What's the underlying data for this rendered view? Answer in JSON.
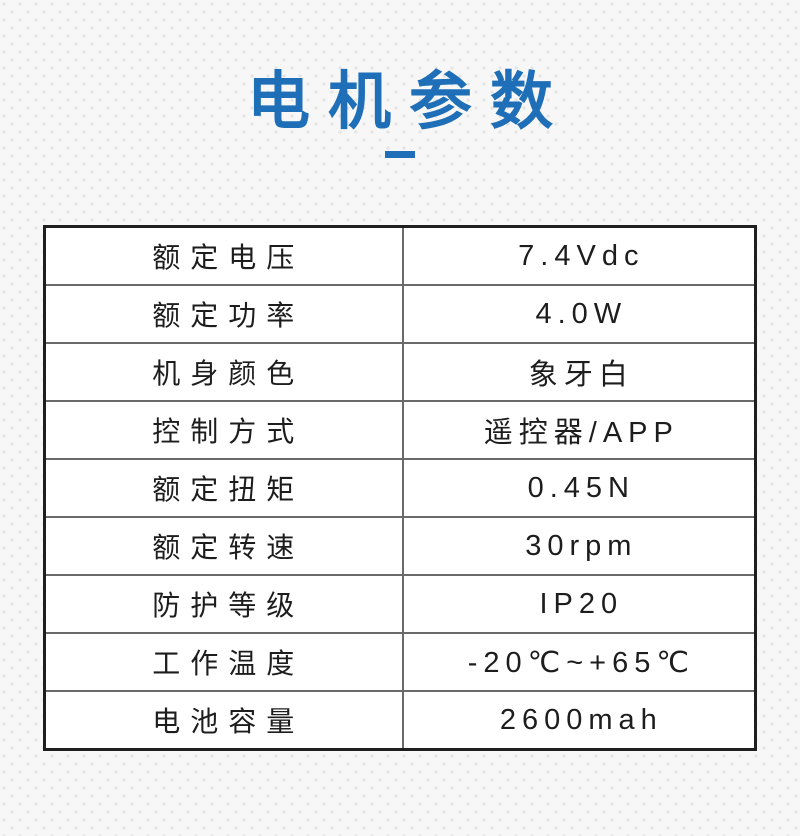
{
  "page": {
    "background_color": "#f7f7f7",
    "dot_pattern_color": "#e4e4e4"
  },
  "header": {
    "title": "电机参数",
    "accent_color": "#1e6fb8"
  },
  "table": {
    "border_outer_color": "#1f1f1f",
    "border_inner_color": "#6a6a6a",
    "text_color": "#1d1d1d",
    "rows": [
      {
        "label": "额定电压",
        "value": "7.4Vdc"
      },
      {
        "label": "额定功率",
        "value": "4.0W"
      },
      {
        "label": "机身颜色",
        "value": "象牙白"
      },
      {
        "label": "控制方式",
        "value": "遥控器/APP"
      },
      {
        "label": "额定扭矩",
        "value": "0.45N"
      },
      {
        "label": "额定转速",
        "value": "30rpm"
      },
      {
        "label": "防护等级",
        "value": "IP20"
      },
      {
        "label": "工作温度",
        "value": "-20℃~+65℃"
      },
      {
        "label": "电池容量",
        "value": "2600mah"
      }
    ]
  }
}
